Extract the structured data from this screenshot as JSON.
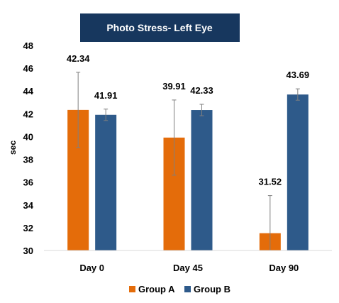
{
  "chart_data": {
    "type": "bar",
    "title": "Photo Stress- Left Eye",
    "xlabel": "",
    "ylabel": "sec",
    "categories": [
      "Day 0",
      "Day 45",
      "Day 90"
    ],
    "ylim": [
      30,
      48
    ],
    "yticks": [
      30,
      32,
      34,
      36,
      38,
      40,
      42,
      44,
      46,
      48
    ],
    "grid": false,
    "legend": "bottom",
    "series": [
      {
        "name": "Group A",
        "color": "#e46c0a",
        "values": [
          42.34,
          39.91,
          31.52
        ],
        "labels": [
          "42.34",
          "39.91",
          "31.52"
        ],
        "error": [
          3.3,
          3.3,
          3.3
        ]
      },
      {
        "name": "Group B",
        "color": "#2e5a8a",
        "values": [
          41.91,
          42.33,
          43.69
        ],
        "labels": [
          "41.91",
          "42.33",
          "43.69"
        ],
        "error": [
          0.5,
          0.5,
          0.5
        ]
      }
    ]
  }
}
